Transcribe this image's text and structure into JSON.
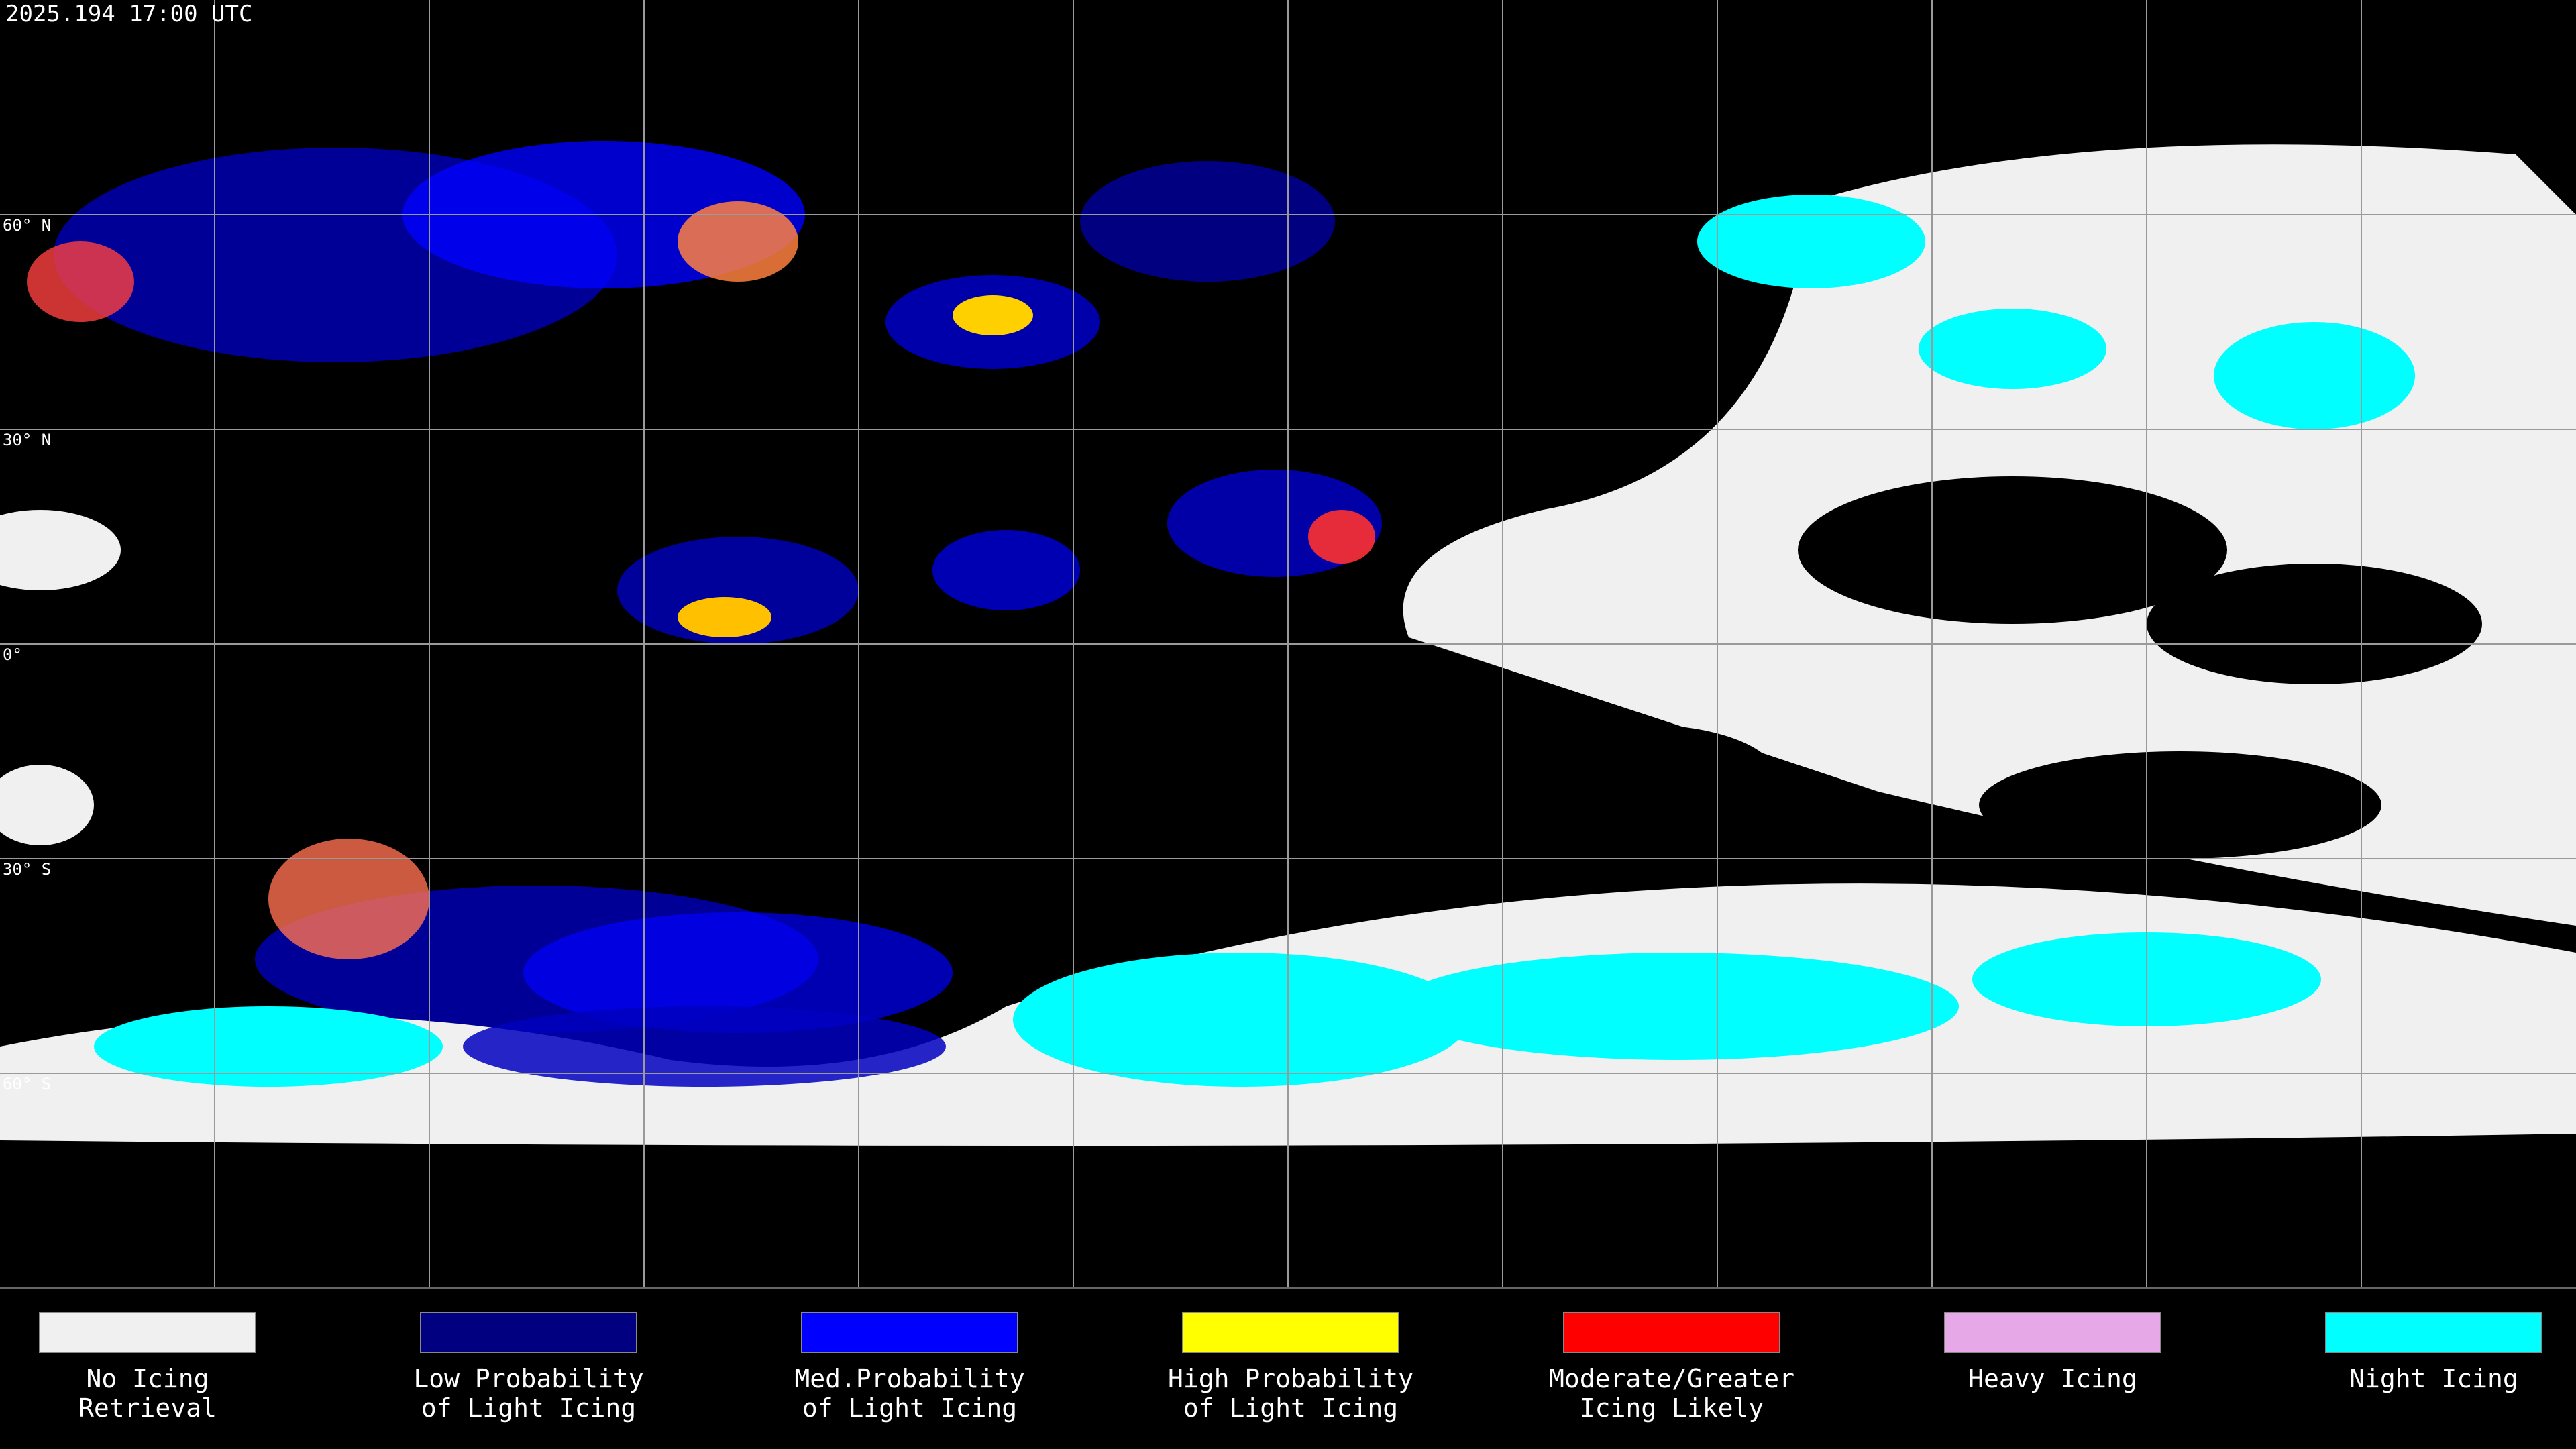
{
  "header": {
    "title": "2025.194 17:00 UTC"
  },
  "map": {
    "latitude_labels": [
      "60° N",
      "30° N",
      "0°",
      "30° S",
      "60° S"
    ]
  },
  "legend": {
    "items": [
      {
        "lines": [
          "No Icing",
          "Retrieval"
        ],
        "color": "#f0f0f0"
      },
      {
        "lines": [
          "Low Probability",
          "of Light Icing"
        ],
        "color": "#000080"
      },
      {
        "lines": [
          "Med.Probability",
          "of Light Icing"
        ],
        "color": "#0000ff"
      },
      {
        "lines": [
          "High Probability",
          "of Light Icing"
        ],
        "color": "#ffff00"
      },
      {
        "lines": [
          "Moderate/Greater",
          "Icing Likely"
        ],
        "color": "#ff0000"
      },
      {
        "lines": [
          "Heavy Icing"
        ],
        "color": "#e6a8e6"
      },
      {
        "lines": [
          "Night Icing"
        ],
        "color": "#00ffff"
      }
    ]
  }
}
